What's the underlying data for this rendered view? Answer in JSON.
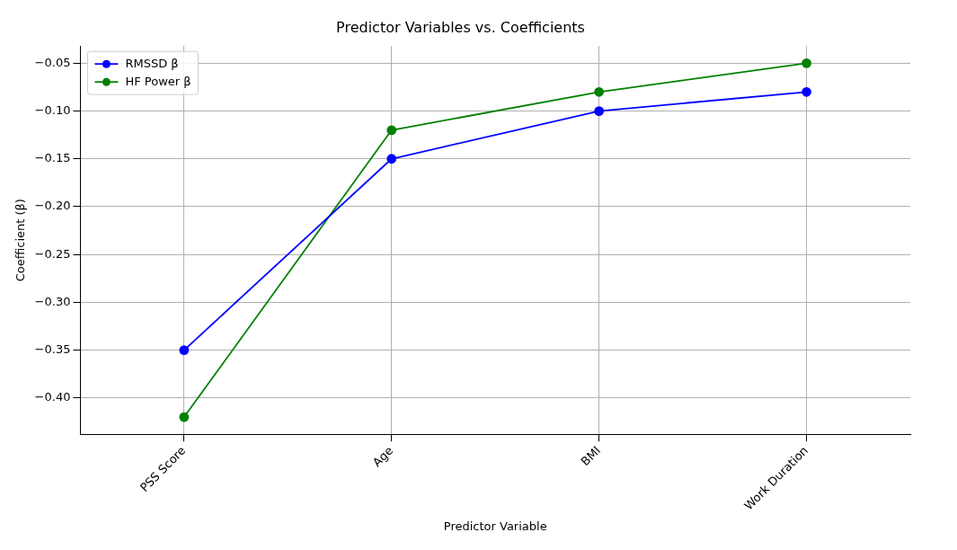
{
  "chart_data": {
    "type": "line",
    "title": "Predictor Variables vs. Coefficients",
    "xlabel": "Predictor Variable",
    "ylabel": "Coefficient (β)",
    "categories": [
      "PSS Score",
      "Age",
      "BMI",
      "Work Duration"
    ],
    "series": [
      {
        "name": "RMSSD β",
        "color": "#0000ff",
        "values": [
          -0.35,
          -0.15,
          -0.1,
          -0.08
        ]
      },
      {
        "name": "HF Power β",
        "color": "#008000",
        "values": [
          -0.42,
          -0.12,
          -0.08,
          -0.05
        ]
      }
    ],
    "ylim": [
      -0.438,
      -0.032
    ],
    "yticks": [
      {
        "value": -0.4,
        "label": "−0.40"
      },
      {
        "value": -0.35,
        "label": "−0.35"
      },
      {
        "value": -0.3,
        "label": "−0.30"
      },
      {
        "value": -0.25,
        "label": "−0.25"
      },
      {
        "value": -0.2,
        "label": "−0.20"
      },
      {
        "value": -0.15,
        "label": "−0.15"
      },
      {
        "value": -0.1,
        "label": "−0.10"
      },
      {
        "value": -0.05,
        "label": "−0.05"
      }
    ],
    "grid": true,
    "legend": "top left",
    "marker": "circle",
    "line_style": "solid"
  }
}
